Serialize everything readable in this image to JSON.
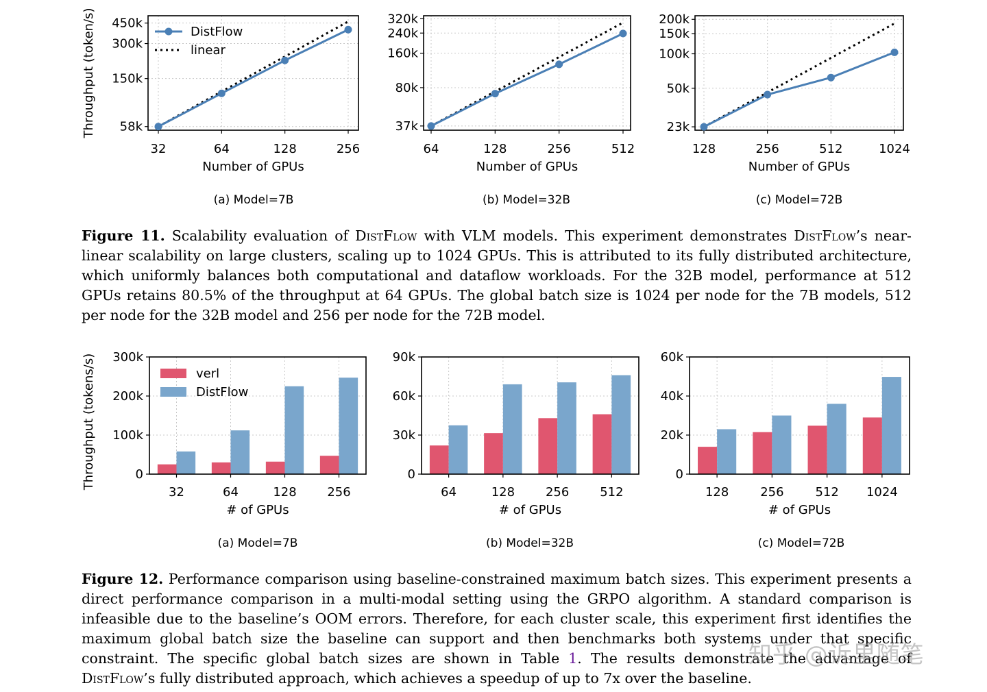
{
  "figure11": {
    "charts": [
      {
        "id": "fig11a",
        "type": "line",
        "subcaption": "(a) Model=7B",
        "xlabel": "Number of GPUs",
        "ylabel": "Throughput (token/s)",
        "x_categories": [
          "32",
          "64",
          "128",
          "256"
        ],
        "y_scale": "log",
        "y_ticks": [
          58000,
          150000,
          300000,
          450000
        ],
        "y_tick_labels": [
          "58k",
          "150k",
          "300k",
          "450k"
        ],
        "ylim": [
          54000,
          520000
        ],
        "series": [
          {
            "name": "DistFlow",
            "style": "solid-marker",
            "color": "#4a7fb5",
            "values": [
              58000,
              112000,
              215000,
              395000
            ]
          },
          {
            "name": "linear",
            "style": "dotted",
            "color": "#000000",
            "values": [
              58000,
              116000,
              232000,
              464000
            ]
          }
        ],
        "legend": true
      },
      {
        "id": "fig11b",
        "type": "line",
        "subcaption": "(b) Model=32B",
        "xlabel": "Number of GPUs",
        "ylabel": "",
        "x_categories": [
          "64",
          "128",
          "256",
          "512"
        ],
        "y_scale": "log",
        "y_ticks": [
          37000,
          80000,
          160000,
          240000,
          320000
        ],
        "y_tick_labels": [
          "37k",
          "80k",
          "160k",
          "240k",
          "320k"
        ],
        "ylim": [
          34000,
          340000
        ],
        "series": [
          {
            "name": "DistFlow",
            "style": "solid-marker",
            "color": "#4a7fb5",
            "values": [
              37000,
              71000,
              128000,
              238000
            ]
          },
          {
            "name": "linear",
            "style": "dotted",
            "color": "#000000",
            "values": [
              37000,
              74000,
              148000,
              296000
            ]
          }
        ],
        "legend": false
      },
      {
        "id": "fig11c",
        "type": "line",
        "subcaption": "(c) Model=72B",
        "xlabel": "Number of GPUs",
        "ylabel": "",
        "x_categories": [
          "128",
          "256",
          "512",
          "1024"
        ],
        "y_scale": "log",
        "y_ticks": [
          23000,
          50000,
          100000,
          150000,
          200000
        ],
        "y_tick_labels": [
          "23k",
          "50k",
          "100k",
          "150k",
          "200k"
        ],
        "ylim": [
          21500,
          215000
        ],
        "series": [
          {
            "name": "DistFlow",
            "style": "solid-marker",
            "color": "#4a7fb5",
            "values": [
              23000,
              44000,
              62000,
              103000
            ]
          },
          {
            "name": "linear",
            "style": "dotted",
            "color": "#000000",
            "values": [
              23000,
              46000,
              92000,
              184000
            ]
          }
        ],
        "legend": false
      }
    ],
    "caption_label": "Figure 11.",
    "caption_parts": [
      " Scalability evaluation of ",
      "DistFlow",
      " with VLM models. This experiment demonstrates ",
      "DistFlow",
      "’s near-linear scalability on large clusters, scaling up to 1024 GPUs. This is attributed to its fully distributed architecture, which uniformly balances both computational and dataflow workloads. For the 32B model, performance at 512 GPUs retains 80.5% of the throughput at 64 GPUs. The global batch size is 1024 per node for the 7B models, 512 per node for the 32B model and 256 per node for the 72B model."
    ]
  },
  "figure12": {
    "charts": [
      {
        "id": "fig12a",
        "type": "bar",
        "subcaption": "(a) Model=7B",
        "xlabel": "# of GPUs",
        "ylabel": "Throughput (tokens/s)",
        "categories": [
          "32",
          "64",
          "128",
          "256"
        ],
        "y_ticks": [
          0,
          100000,
          200000,
          300000
        ],
        "y_tick_labels": [
          "0",
          "100k",
          "200k",
          "300k"
        ],
        "ylim": [
          0,
          300000
        ],
        "series": [
          {
            "name": "verl",
            "color": "#e0566f",
            "values": [
              25000,
              30000,
              32000,
              47000
            ]
          },
          {
            "name": "DistFlow",
            "color": "#7aa6cc",
            "values": [
              58000,
              112000,
              225000,
              247000
            ]
          }
        ],
        "legend": true
      },
      {
        "id": "fig12b",
        "type": "bar",
        "subcaption": "(b) Model=32B",
        "xlabel": "# of GPUs",
        "ylabel": "",
        "categories": [
          "64",
          "128",
          "256",
          "512"
        ],
        "y_ticks": [
          0,
          30000,
          60000,
          90000
        ],
        "y_tick_labels": [
          "0",
          "30k",
          "60k",
          "90k"
        ],
        "ylim": [
          0,
          90000
        ],
        "series": [
          {
            "name": "verl",
            "color": "#e0566f",
            "values": [
              22000,
              31500,
              43000,
              46000
            ]
          },
          {
            "name": "DistFlow",
            "color": "#7aa6cc",
            "values": [
              37500,
              69000,
              70500,
              76000
            ]
          }
        ],
        "legend": false
      },
      {
        "id": "fig12c",
        "type": "bar",
        "subcaption": "(c) Model=72B",
        "xlabel": "# of GPUs",
        "ylabel": "",
        "categories": [
          "128",
          "256",
          "512",
          "1024"
        ],
        "y_ticks": [
          0,
          20000,
          40000,
          60000
        ],
        "y_tick_labels": [
          "0",
          "20k",
          "40k",
          "60k"
        ],
        "ylim": [
          0,
          60000
        ],
        "series": [
          {
            "name": "verl",
            "color": "#e0566f",
            "values": [
              14000,
              21500,
              24800,
              29000
            ]
          },
          {
            "name": "DistFlow",
            "color": "#7aa6cc",
            "values": [
              23000,
              30000,
              36000,
              49800
            ]
          }
        ],
        "legend": false
      }
    ],
    "caption_label": "Figure 12.",
    "caption_parts": [
      " Performance comparison using baseline-constrained maximum batch sizes. This experiment presents a direct performance comparison in a multi-modal setting using the GRPO algorithm. A standard comparison is infeasible due to the baseline’s OOM errors. Therefore, for each cluster scale, this experiment first identifies the maximum global batch size the baseline can support and then benchmarks both systems under that specific constraint. The specific global batch sizes are shown in Table ",
      "1",
      ". The results demonstrate the advantage of ",
      "DistFlow",
      "’s fully distributed approach, which achieves a speedup of up to 7x over the baseline."
    ]
  },
  "watermark": "知乎 @诉里随笔"
}
